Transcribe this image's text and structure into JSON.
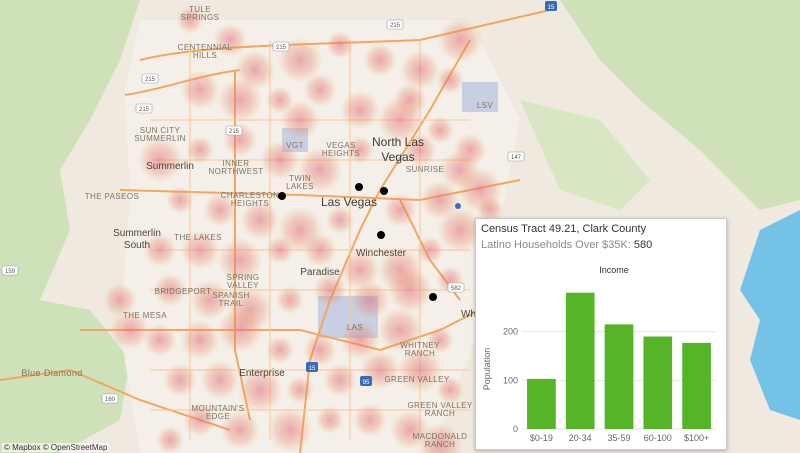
{
  "map": {
    "city_labels": {
      "las_vegas": "Las Vegas",
      "north_las_vegas_1": "North Las",
      "north_las_vegas_2": "Vegas",
      "winchester": "Winchester",
      "paradise": "Paradise",
      "enterprise": "Enterprise",
      "summerlin": "Summerlin",
      "summerlin_south_1": "Summerlin",
      "summerlin_south_2": "South",
      "blue_diamond": "Blue Diamond"
    },
    "area_labels": {
      "tule_springs_1": "TULE",
      "tule_springs_2": "SPRINGS",
      "centennial_1": "CENTENNIAL",
      "centennial_2": "HILLS",
      "sun_city_1": "SUN CITY",
      "sun_city_2": "SUMMERLIN",
      "vegas_heights_1": "VEGAS",
      "vegas_heights_2": "HEIGHTS",
      "inner_nw_1": "INNER",
      "inner_nw_2": "NORTHWEST",
      "twin_lakes_1": "TWIN",
      "twin_lakes_2": "LAKES",
      "charleston_1": "CHARLESTON",
      "charleston_2": "HEIGHTS",
      "the_paseos": "THE PASEOS",
      "the_lakes": "THE LAKES",
      "sunrise": "SUNRISE",
      "spring_valley_1": "SPRING",
      "spring_valley_2": "VALLEY",
      "spanish_trail_1": "SPANISH",
      "spanish_trail_2": "TRAIL",
      "bridgeport": "BRIDGEPORT",
      "the_mesa": "THE MESA",
      "mountains_edge_1": "MOUNTAIN'S",
      "mountains_edge_2": "EDGE",
      "green_valley_1": "GREEN VALLEY",
      "green_valley_2": "RANCH",
      "whitney_1": "WHITNEY",
      "whitney_2": "RANCH",
      "green_valley": "GREEN VALLEY",
      "macdonald_1": "MACDONALD",
      "macdonald_2": "RANCH",
      "whitney_partial": "Wh"
    },
    "airport_labels": {
      "vgt": "VGT",
      "lsv": "LSV",
      "las": "LAS"
    },
    "shields": {
      "i215_top": "215",
      "i215_nw": "215",
      "n215": "215",
      "i15_ne": "15",
      "i15_s": "15",
      "i95": "95",
      "r147": "147",
      "r159": "159",
      "r160": "160",
      "r582": "582",
      "r215_left": "215",
      "r215_w": "215"
    },
    "attribution": "© Mapbox © OpenStreetMap",
    "colors": {
      "base": "#efe9df",
      "park": "#cfe1b9",
      "water": "#74c3e6",
      "road_major": "#f0a860",
      "heat": "#e0697b",
      "marker": "#000000"
    }
  },
  "tooltip": {
    "title": "Census Tract 49.21, Clark County",
    "metric_label": "Latino Households Over $35K:",
    "metric_value": "580"
  },
  "chart_data": {
    "type": "bar",
    "title": "Income",
    "ylabel": "Population",
    "categories": [
      "$0-19",
      "20-34",
      "35-59",
      "60-100",
      "$100+"
    ],
    "values": [
      103,
      280,
      215,
      190,
      177
    ],
    "yticks": [
      0,
      100,
      200
    ],
    "ylim": [
      0,
      300
    ],
    "grid": true,
    "bar_color": "#56b526"
  }
}
